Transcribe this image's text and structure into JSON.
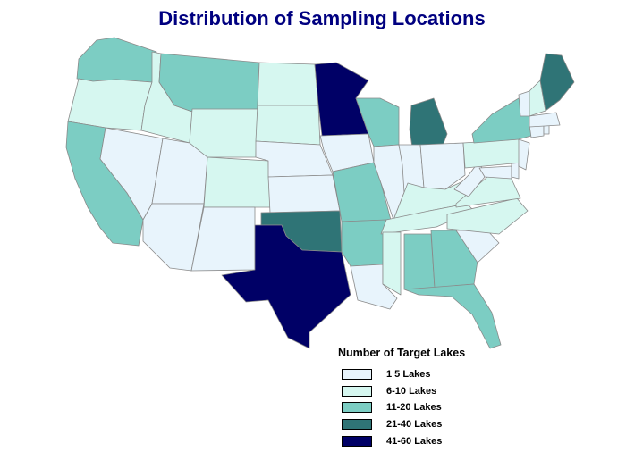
{
  "title": "Distribution of Sampling Locations",
  "legend": {
    "title": "Number of Target Lakes",
    "classes": [
      {
        "label": "1 5 Lakes",
        "color": "#e8f4fc"
      },
      {
        "label": "6-10 Lakes",
        "color": "#d6f7f0"
      },
      {
        "label": "11-20 Lakes",
        "color": "#7ccdc3"
      },
      {
        "label": "21-40 Lakes",
        "color": "#2f7476"
      },
      {
        "label": "41-60 Lakes",
        "color": "#000066"
      }
    ]
  },
  "states": [
    {
      "name": "Washington",
      "class": 2
    },
    {
      "name": "Oregon",
      "class": 1
    },
    {
      "name": "California",
      "class": 2
    },
    {
      "name": "Idaho",
      "class": 1
    },
    {
      "name": "Nevada",
      "class": 0
    },
    {
      "name": "Utah",
      "class": 0
    },
    {
      "name": "Arizona",
      "class": 0
    },
    {
      "name": "Montana",
      "class": 2
    },
    {
      "name": "Wyoming",
      "class": 1
    },
    {
      "name": "Colorado",
      "class": 1
    },
    {
      "name": "New Mexico",
      "class": 0
    },
    {
      "name": "North Dakota",
      "class": 1
    },
    {
      "name": "South Dakota",
      "class": 1
    },
    {
      "name": "Nebraska",
      "class": 0
    },
    {
      "name": "Kansas",
      "class": 0
    },
    {
      "name": "Oklahoma",
      "class": 3
    },
    {
      "name": "Texas",
      "class": 4
    },
    {
      "name": "Minnesota",
      "class": 4
    },
    {
      "name": "Iowa",
      "class": 0
    },
    {
      "name": "Missouri",
      "class": 2
    },
    {
      "name": "Arkansas",
      "class": 2
    },
    {
      "name": "Louisiana",
      "class": 0
    },
    {
      "name": "Wisconsin",
      "class": 2
    },
    {
      "name": "Illinois",
      "class": 0
    },
    {
      "name": "Michigan",
      "class": 3
    },
    {
      "name": "Indiana",
      "class": 0
    },
    {
      "name": "Ohio",
      "class": 0
    },
    {
      "name": "Kentucky",
      "class": 1
    },
    {
      "name": "Tennessee",
      "class": 1
    },
    {
      "name": "Mississippi",
      "class": 1
    },
    {
      "name": "Alabama",
      "class": 2
    },
    {
      "name": "Georgia",
      "class": 2
    },
    {
      "name": "Florida",
      "class": 2
    },
    {
      "name": "South Carolina",
      "class": 0
    },
    {
      "name": "North Carolina",
      "class": 1
    },
    {
      "name": "Virginia",
      "class": 1
    },
    {
      "name": "West Virginia",
      "class": 0
    },
    {
      "name": "Maryland",
      "class": 0
    },
    {
      "name": "Delaware",
      "class": 0
    },
    {
      "name": "Pennsylvania",
      "class": 1
    },
    {
      "name": "New Jersey",
      "class": 0
    },
    {
      "name": "New York",
      "class": 2
    },
    {
      "name": "Connecticut",
      "class": 0
    },
    {
      "name": "Rhode Island",
      "class": 0
    },
    {
      "name": "Massachusetts",
      "class": 0
    },
    {
      "name": "Vermont",
      "class": 0
    },
    {
      "name": "New Hampshire",
      "class": 1
    },
    {
      "name": "Maine",
      "class": 3
    }
  ]
}
